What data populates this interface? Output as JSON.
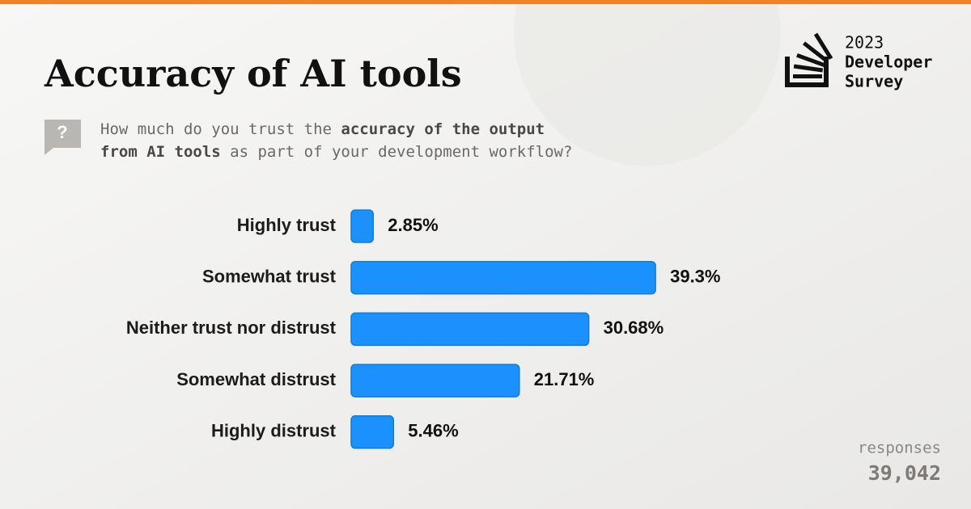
{
  "chart_data": {
    "type": "bar",
    "orientation": "horizontal",
    "title": "Accuracy of AI tools",
    "question": [
      "How much do you trust the ",
      "accuracy of the output",
      "from AI tools",
      " as part of your development workflow?"
    ],
    "categories": [
      "Highly trust",
      "Somewhat trust",
      "Neither trust nor distrust",
      "Somewhat distrust",
      "Highly distrust"
    ],
    "values": [
      2.85,
      39.3,
      30.68,
      21.71,
      5.46
    ],
    "value_labels": [
      "2.85%",
      "39.3%",
      "30.68%",
      "21.71%",
      "5.46%"
    ],
    "color": "#1b91ff",
    "brand": [
      "2023",
      "Developer",
      "Survey"
    ],
    "responses_label": "responses",
    "responses": "39,042"
  }
}
